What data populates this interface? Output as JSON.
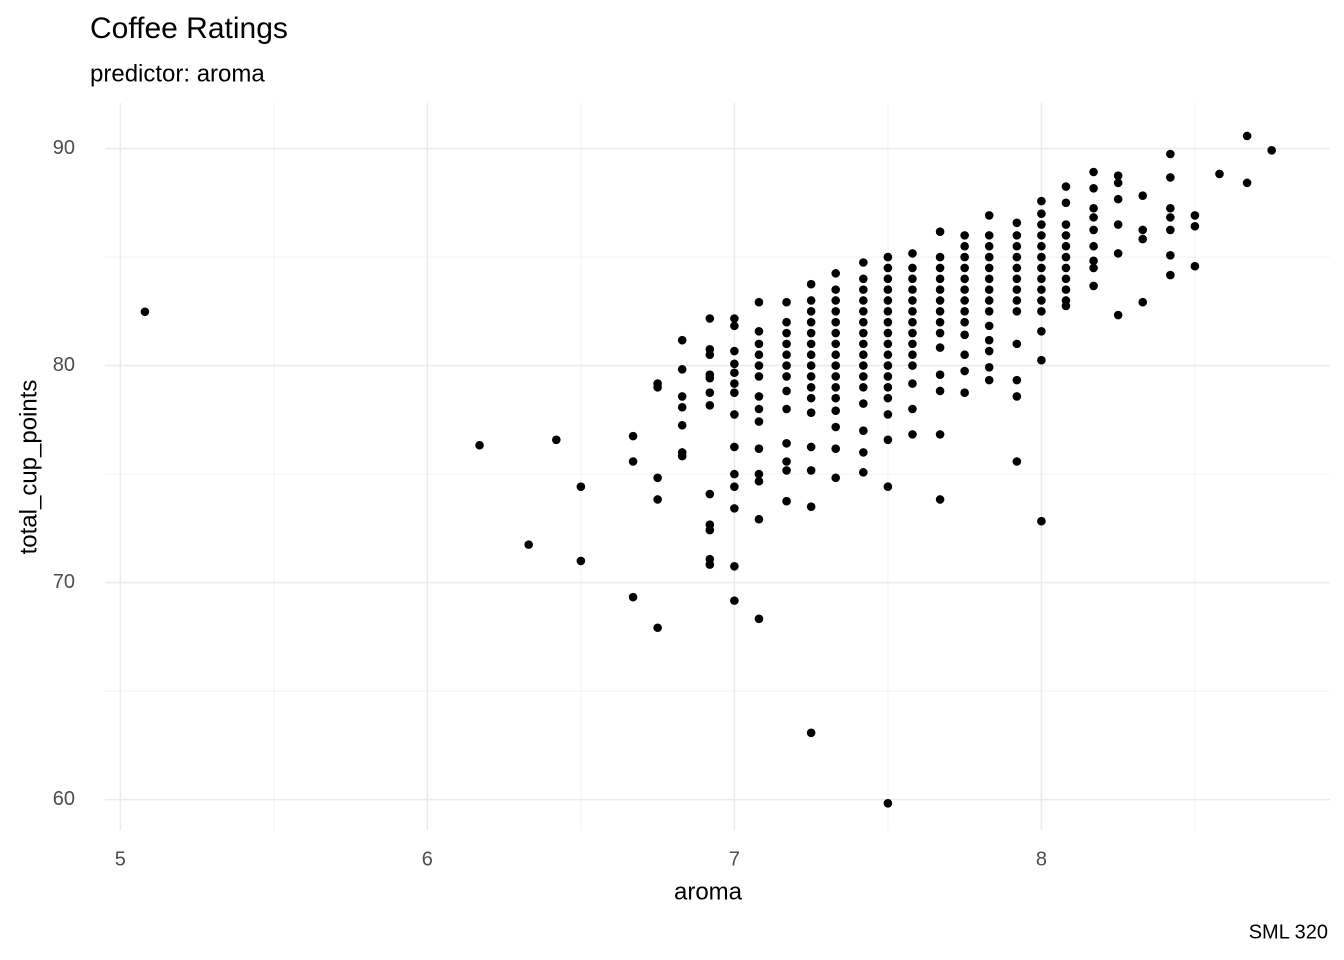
{
  "chart_data": {
    "type": "scatter",
    "title": "Coffee Ratings",
    "subtitle": "predictor: aroma",
    "x_label": "aroma",
    "y_label": "total_cup_points",
    "caption": "SML 320",
    "color": "#000000",
    "grid": true,
    "xlim": [
      4.95,
      8.94
    ],
    "ylim": [
      58.6,
      92.1
    ],
    "xticks": [
      5,
      6,
      7,
      8
    ],
    "yticks": [
      60,
      70,
      80,
      90
    ],
    "minor_xgrid": [
      5.5,
      6.5,
      7.5,
      8.5
    ],
    "minor_ygrid": [
      65,
      75,
      85
    ],
    "x": [
      5.08,
      6.17,
      6.33,
      6.42,
      6.5,
      6.5,
      6.67,
      6.67,
      6.67,
      6.75,
      6.75,
      6.75,
      6.75,
      6.75,
      6.83,
      6.83,
      6.83,
      6.83,
      6.83,
      6.83,
      6.83,
      6.92,
      6.92,
      6.92,
      6.92,
      6.92,
      6.92,
      6.92,
      6.92,
      6.92,
      6.92,
      6.92,
      6.92,
      7.0,
      7.0,
      7.0,
      7.0,
      7.0,
      7.0,
      7.0,
      7.0,
      7.0,
      7.0,
      7.0,
      7.0,
      7.0,
      7.0,
      7.08,
      7.08,
      7.08,
      7.08,
      7.08,
      7.08,
      7.08,
      7.08,
      7.08,
      7.08,
      7.08,
      7.08,
      7.08,
      7.08,
      7.17,
      7.17,
      7.17,
      7.17,
      7.17,
      7.17,
      7.17,
      7.17,
      7.17,
      7.17,
      7.17,
      7.17,
      7.17,
      7.25,
      7.25,
      7.25,
      7.25,
      7.25,
      7.25,
      7.25,
      7.25,
      7.25,
      7.25,
      7.25,
      7.25,
      7.25,
      7.25,
      7.25,
      7.25,
      7.33,
      7.33,
      7.33,
      7.33,
      7.33,
      7.33,
      7.33,
      7.33,
      7.33,
      7.33,
      7.33,
      7.33,
      7.33,
      7.33,
      7.33,
      7.33,
      7.42,
      7.42,
      7.42,
      7.42,
      7.42,
      7.42,
      7.42,
      7.42,
      7.42,
      7.42,
      7.42,
      7.42,
      7.42,
      7.42,
      7.42,
      7.42,
      7.5,
      7.5,
      7.5,
      7.5,
      7.5,
      7.5,
      7.5,
      7.5,
      7.5,
      7.5,
      7.5,
      7.5,
      7.5,
      7.5,
      7.5,
      7.5,
      7.5,
      7.5,
      7.58,
      7.58,
      7.58,
      7.58,
      7.58,
      7.58,
      7.58,
      7.58,
      7.58,
      7.58,
      7.58,
      7.58,
      7.58,
      7.58,
      7.67,
      7.67,
      7.67,
      7.67,
      7.67,
      7.67,
      7.67,
      7.67,
      7.67,
      7.67,
      7.67,
      7.67,
      7.67,
      7.67,
      7.75,
      7.75,
      7.75,
      7.75,
      7.75,
      7.75,
      7.75,
      7.75,
      7.75,
      7.75,
      7.75,
      7.75,
      7.75,
      7.83,
      7.83,
      7.83,
      7.83,
      7.83,
      7.83,
      7.83,
      7.83,
      7.83,
      7.83,
      7.83,
      7.83,
      7.83,
      7.83,
      7.92,
      7.92,
      7.92,
      7.92,
      7.92,
      7.92,
      7.92,
      7.92,
      7.92,
      7.92,
      7.92,
      7.92,
      7.92,
      8.0,
      8.0,
      8.0,
      8.0,
      8.0,
      8.0,
      8.0,
      8.0,
      8.0,
      8.0,
      8.0,
      8.0,
      8.0,
      8.0,
      8.08,
      8.08,
      8.08,
      8.08,
      8.08,
      8.08,
      8.08,
      8.08,
      8.08,
      8.08,
      8.08,
      8.17,
      8.17,
      8.17,
      8.17,
      8.17,
      8.17,
      8.17,
      8.17,
      8.17,
      8.25,
      8.25,
      8.25,
      8.25,
      8.25,
      8.25,
      8.33,
      8.33,
      8.33,
      8.33,
      8.42,
      8.42,
      8.42,
      8.42,
      8.42,
      8.42,
      8.42,
      8.5,
      8.5,
      8.5,
      8.58,
      8.67,
      8.67,
      8.75
    ],
    "values": [
      82.48,
      76.33,
      71.75,
      76.58,
      74.42,
      71.0,
      76.75,
      75.58,
      69.33,
      74.83,
      73.83,
      67.92,
      79.17,
      79.0,
      81.17,
      79.83,
      78.58,
      78.08,
      77.25,
      76.0,
      75.83,
      82.17,
      80.75,
      80.5,
      79.58,
      79.42,
      78.75,
      78.17,
      74.08,
      72.67,
      72.42,
      71.08,
      70.83,
      82.17,
      81.83,
      80.67,
      80.08,
      79.67,
      79.17,
      78.75,
      77.75,
      76.25,
      75.0,
      74.42,
      73.42,
      70.75,
      69.17,
      82.92,
      81.58,
      81.0,
      80.5,
      80.0,
      79.5,
      78.58,
      78.0,
      77.42,
      76.17,
      75.0,
      74.67,
      72.92,
      68.33,
      82.92,
      82.0,
      81.5,
      81.0,
      80.5,
      80.0,
      79.5,
      78.83,
      78.0,
      76.42,
      75.58,
      75.17,
      73.75,
      83.75,
      83.0,
      82.5,
      82.0,
      81.5,
      81.0,
      80.5,
      80.0,
      79.5,
      79.0,
      78.5,
      77.83,
      76.25,
      75.17,
      73.5,
      63.08,
      84.25,
      83.5,
      83.0,
      82.5,
      82.0,
      81.5,
      81.0,
      80.5,
      80.0,
      79.5,
      79.0,
      78.5,
      77.92,
      77.17,
      76.17,
      74.83,
      84.75,
      84.0,
      83.5,
      83.0,
      82.5,
      82.0,
      81.5,
      81.0,
      80.5,
      80.0,
      79.5,
      79.0,
      78.25,
      77.0,
      76.0,
      75.08,
      85.0,
      84.5,
      84.0,
      83.5,
      83.0,
      82.5,
      82.0,
      81.5,
      81.0,
      80.5,
      80.0,
      79.5,
      79.0,
      78.5,
      77.75,
      76.58,
      74.42,
      59.83,
      85.17,
      84.5,
      84.0,
      83.5,
      83.0,
      82.5,
      82.0,
      81.5,
      81.0,
      80.5,
      80.0,
      79.17,
      78.0,
      76.83,
      86.17,
      85.0,
      84.5,
      84.0,
      83.5,
      83.0,
      82.5,
      82.0,
      81.5,
      80.83,
      79.58,
      78.83,
      76.83,
      73.83,
      86.0,
      85.5,
      85.0,
      84.5,
      84.0,
      83.5,
      83.0,
      82.5,
      82.0,
      81.42,
      80.5,
      79.75,
      78.75,
      86.92,
      86.0,
      85.5,
      85.0,
      84.5,
      84.0,
      83.5,
      83.0,
      82.5,
      81.83,
      81.17,
      80.67,
      79.92,
      79.33,
      86.58,
      86.0,
      85.5,
      85.0,
      84.5,
      84.0,
      83.5,
      83.0,
      82.5,
      81.0,
      79.33,
      78.58,
      75.58,
      87.58,
      87.0,
      86.5,
      86.0,
      85.5,
      85.0,
      84.5,
      84.0,
      83.5,
      83.0,
      82.5,
      81.58,
      80.25,
      72.83,
      88.25,
      87.5,
      86.5,
      86.0,
      85.5,
      85.0,
      84.5,
      84.0,
      83.5,
      83.0,
      82.75,
      88.92,
      88.17,
      87.25,
      86.83,
      86.25,
      85.5,
      84.83,
      84.5,
      83.67,
      88.75,
      88.42,
      87.67,
      86.5,
      85.17,
      82.33,
      87.83,
      86.25,
      85.83,
      82.92,
      89.75,
      88.67,
      87.25,
      86.83,
      86.25,
      85.08,
      84.17,
      86.92,
      86.42,
      84.58,
      88.83,
      90.58,
      88.42,
      89.92
    ]
  }
}
